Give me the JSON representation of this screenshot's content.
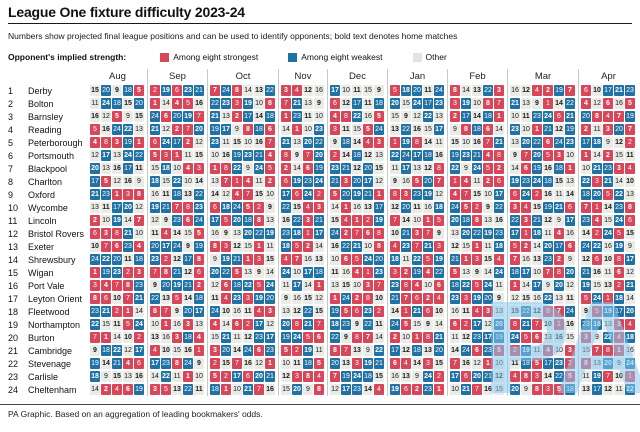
{
  "title": "League One fixture difficulty 2023-24",
  "subtitle": "Numbers show projected final league positions and can be used to identify opponents; bold text denotes home matches",
  "legend": {
    "title": "Opponent's implied strength:",
    "items": [
      {
        "label": "Among eight strongest",
        "color": "#d8465a"
      },
      {
        "label": "Among eight weakest",
        "color": "#2172a4"
      },
      {
        "label": "Other",
        "color": "#e3e3e0"
      }
    ]
  },
  "colors": {
    "strong": "#d8465a",
    "weak": "#2172a4",
    "other": "#eaeae7",
    "other_text": "#1a1a1a"
  },
  "footer": "PA Graphic. Based on an aggregation of leading bookmakers' odds.",
  "watermark": "PA",
  "chart_data": {
    "type": "heatmap",
    "title": "League One fixture difficulty 2023-24",
    "value_semantics": "Each cell is the projected final league position of that matchday's opponent. Red = opponent among eight strongest (1-8), blue = among eight weakest (17-24), grey = other (9-16). Bold text denotes home matches.",
    "months": [
      {
        "label": "Aug",
        "matches": 5
      },
      {
        "label": "Sep",
        "matches": 5
      },
      {
        "label": "Oct",
        "matches": 6
      },
      {
        "label": "Nov",
        "matches": 4
      },
      {
        "label": "Dec",
        "matches": 5
      },
      {
        "label": "Jan",
        "matches": 5
      },
      {
        "label": "Feb",
        "matches": 5
      },
      {
        "label": "Mar",
        "matches": 6
      },
      {
        "label": "Apr",
        "matches": 5
      }
    ],
    "teams": [
      {
        "rank": 1,
        "name": "Derby",
        "home_first": true,
        "fixtures": [
          15,
          20,
          9,
          18,
          5,
          2,
          19,
          6,
          23,
          21,
          7,
          24,
          8,
          14,
          13,
          22,
          3,
          4,
          12,
          16,
          17,
          10,
          11,
          15,
          9,
          5,
          18,
          20,
          11,
          24,
          8,
          14,
          13,
          22,
          3,
          16,
          12,
          4,
          2,
          19,
          7,
          6,
          10,
          17,
          21,
          23
        ]
      },
      {
        "rank": 2,
        "name": "Bolton",
        "home_first": false,
        "fixtures": [
          11,
          24,
          18,
          15,
          20,
          1,
          14,
          4,
          5,
          16,
          22,
          23,
          3,
          19,
          10,
          8,
          7,
          21,
          13,
          9,
          6,
          12,
          17,
          11,
          18,
          20,
          15,
          24,
          17,
          23,
          3,
          19,
          10,
          8,
          7,
          21,
          13,
          9,
          1,
          14,
          22,
          4,
          12,
          6,
          16,
          5
        ]
      },
      {
        "rank": 3,
        "name": "Barnsley",
        "home_first": true,
        "fixtures": [
          16,
          12,
          5,
          9,
          15,
          24,
          6,
          20,
          19,
          7,
          21,
          13,
          2,
          17,
          14,
          18,
          1,
          23,
          11,
          10,
          4,
          8,
          22,
          16,
          5,
          15,
          9,
          12,
          22,
          13,
          2,
          17,
          14,
          18,
          1,
          10,
          11,
          23,
          24,
          6,
          21,
          20,
          8,
          4,
          7,
          19
        ]
      },
      {
        "rank": 4,
        "name": "Reading",
        "home_first": false,
        "fixtures": [
          5,
          16,
          24,
          22,
          13,
          21,
          12,
          2,
          7,
          20,
          19,
          17,
          9,
          8,
          18,
          6,
          14,
          1,
          10,
          23,
          3,
          11,
          15,
          5,
          24,
          13,
          22,
          16,
          15,
          17,
          9,
          8,
          18,
          6,
          14,
          23,
          10,
          1,
          21,
          12,
          19,
          2,
          11,
          3,
          20,
          7
        ]
      },
      {
        "rank": 5,
        "name": "Peterborough",
        "home_first": true,
        "fixtures": [
          4,
          8,
          3,
          19,
          1,
          6,
          24,
          17,
          2,
          12,
          23,
          11,
          15,
          10,
          16,
          7,
          21,
          13,
          20,
          22,
          9,
          18,
          14,
          4,
          3,
          1,
          19,
          8,
          14,
          11,
          15,
          10,
          16,
          7,
          21,
          13,
          20,
          22,
          6,
          24,
          23,
          17,
          18,
          9,
          12,
          2
        ]
      },
      {
        "rank": 6,
        "name": "Portsmouth",
        "home_first": false,
        "fixtures": [
          12,
          17,
          13,
          24,
          22,
          5,
          3,
          1,
          11,
          15,
          10,
          16,
          19,
          23,
          21,
          4,
          8,
          9,
          7,
          20,
          2,
          14,
          18,
          12,
          13,
          22,
          24,
          17,
          18,
          16,
          19,
          23,
          21,
          4,
          8,
          9,
          7,
          20,
          5,
          3,
          10,
          1,
          14,
          2,
          15,
          11
        ]
      },
      {
        "rank": 7,
        "name": "Blackpool",
        "home_first": true,
        "fixtures": [
          20,
          13,
          16,
          17,
          11,
          15,
          18,
          10,
          4,
          3,
          1,
          8,
          22,
          9,
          24,
          5,
          2,
          14,
          6,
          19,
          23,
          21,
          12,
          20,
          15,
          11,
          17,
          13,
          12,
          8,
          22,
          9,
          24,
          5,
          2,
          14,
          6,
          19,
          16,
          18,
          1,
          10,
          21,
          23,
          3,
          4
        ]
      },
      {
        "rank": 8,
        "name": "Charlton",
        "home_first": false,
        "fixtures": [
          17,
          5,
          12,
          16,
          9,
          18,
          15,
          22,
          10,
          14,
          13,
          7,
          1,
          4,
          11,
          2,
          6,
          19,
          23,
          24,
          21,
          3,
          20,
          17,
          12,
          9,
          16,
          5,
          20,
          7,
          1,
          4,
          11,
          2,
          6,
          19,
          23,
          24,
          18,
          15,
          13,
          22,
          3,
          21,
          14,
          10
        ]
      },
      {
        "rank": 9,
        "name": "Oxford",
        "home_first": true,
        "fixtures": [
          21,
          23,
          1,
          3,
          8,
          16,
          11,
          18,
          13,
          22,
          14,
          12,
          4,
          7,
          15,
          10,
          17,
          6,
          24,
          2,
          5,
          20,
          19,
          21,
          1,
          8,
          3,
          23,
          19,
          12,
          4,
          7,
          15,
          10,
          17,
          6,
          24,
          2,
          16,
          11,
          14,
          18,
          20,
          5,
          22,
          13
        ]
      },
      {
        "rank": 10,
        "name": "Wycombe",
        "home_first": false,
        "fixtures": [
          13,
          11,
          17,
          20,
          12,
          19,
          21,
          7,
          8,
          23,
          6,
          18,
          24,
          5,
          2,
          9,
          22,
          15,
          4,
          3,
          14,
          1,
          16,
          13,
          17,
          12,
          20,
          11,
          16,
          18,
          24,
          5,
          2,
          9,
          22,
          3,
          4,
          15,
          19,
          21,
          6,
          7,
          1,
          14,
          23,
          8
        ]
      },
      {
        "rank": 11,
        "name": "Lincoln",
        "home_first": true,
        "fixtures": [
          2,
          10,
          19,
          14,
          7,
          12,
          9,
          23,
          6,
          24,
          17,
          5,
          20,
          18,
          8,
          13,
          16,
          22,
          3,
          21,
          15,
          4,
          1,
          2,
          19,
          7,
          14,
          10,
          1,
          5,
          20,
          18,
          8,
          13,
          16,
          22,
          3,
          21,
          12,
          9,
          17,
          23,
          4,
          15,
          24,
          6
        ]
      },
      {
        "rank": 12,
        "name": "Bristol Rovers",
        "home_first": false,
        "fixtures": [
          6,
          3,
          8,
          21,
          10,
          11,
          4,
          14,
          15,
          5,
          16,
          9,
          13,
          20,
          22,
          19,
          23,
          18,
          1,
          17,
          24,
          2,
          7,
          6,
          8,
          10,
          21,
          3,
          7,
          9,
          13,
          20,
          22,
          19,
          23,
          17,
          1,
          18,
          11,
          4,
          16,
          14,
          2,
          24,
          5,
          15
        ]
      },
      {
        "rank": 13,
        "name": "Exeter",
        "home_first": true,
        "fixtures": [
          10,
          7,
          6,
          23,
          4,
          20,
          17,
          24,
          9,
          19,
          8,
          3,
          12,
          15,
          1,
          11,
          18,
          5,
          2,
          14,
          16,
          22,
          21,
          10,
          8,
          4,
          23,
          7,
          21,
          3,
          12,
          15,
          1,
          11,
          18,
          5,
          2,
          14,
          20,
          17,
          6,
          24,
          22,
          16,
          19,
          9
        ]
      },
      {
        "rank": 14,
        "name": "Shrewsbury",
        "home_first": false,
        "fixtures": [
          24,
          22,
          20,
          11,
          18,
          23,
          2,
          12,
          17,
          8,
          9,
          19,
          21,
          1,
          3,
          15,
          4,
          7,
          16,
          13,
          10,
          6,
          5,
          24,
          20,
          18,
          11,
          22,
          5,
          19,
          21,
          1,
          3,
          15,
          4,
          7,
          16,
          13,
          23,
          2,
          9,
          12,
          6,
          10,
          8,
          17
        ]
      },
      {
        "rank": 15,
        "name": "Wigan",
        "home_first": true,
        "fixtures": [
          1,
          19,
          23,
          2,
          3,
          7,
          8,
          21,
          12,
          6,
          20,
          22,
          5,
          13,
          9,
          14,
          24,
          10,
          17,
          18,
          11,
          16,
          4,
          1,
          23,
          3,
          2,
          19,
          4,
          22,
          5,
          13,
          9,
          14,
          24,
          18,
          17,
          10,
          7,
          8,
          20,
          21,
          16,
          11,
          6,
          12
        ]
      },
      {
        "rank": 16,
        "name": "Port Vale",
        "home_first": false,
        "fixtures": [
          3,
          4,
          7,
          8,
          23,
          9,
          20,
          19,
          21,
          2,
          12,
          6,
          18,
          22,
          5,
          24,
          11,
          17,
          14,
          1,
          13,
          15,
          10,
          3,
          7,
          23,
          8,
          4,
          10,
          6,
          18,
          22,
          5,
          24,
          11,
          1,
          14,
          17,
          9,
          20,
          12,
          19,
          15,
          13,
          2,
          21
        ]
      },
      {
        "rank": 17,
        "name": "Leyton Orient",
        "home_first": true,
        "fixtures": [
          8,
          6,
          10,
          7,
          21,
          22,
          13,
          5,
          14,
          18,
          11,
          4,
          23,
          3,
          19,
          20,
          9,
          16,
          15,
          12,
          1,
          24,
          2,
          8,
          10,
          21,
          7,
          6,
          2,
          4,
          23,
          3,
          19,
          20,
          9,
          12,
          15,
          16,
          22,
          13,
          11,
          5,
          24,
          1,
          18,
          14
        ]
      },
      {
        "rank": 18,
        "name": "Fleetwood",
        "home_first": false,
        "fixtures": [
          23,
          21,
          2,
          1,
          14,
          8,
          7,
          9,
          20,
          17,
          24,
          10,
          16,
          11,
          4,
          3,
          13,
          12,
          22,
          15,
          19,
          5,
          6,
          23,
          2,
          14,
          1,
          21,
          6,
          10,
          16,
          11,
          4,
          3,
          13,
          15,
          22,
          12,
          8,
          7,
          24,
          9,
          5,
          19,
          17,
          20
        ]
      },
      {
        "rank": 19,
        "name": "Northampton",
        "home_first": true,
        "fixtures": [
          22,
          15,
          11,
          5,
          24,
          10,
          1,
          16,
          3,
          13,
          4,
          14,
          6,
          2,
          17,
          12,
          20,
          8,
          21,
          7,
          18,
          23,
          9,
          22,
          11,
          24,
          5,
          15,
          9,
          14,
          6,
          2,
          17,
          12,
          20,
          8,
          21,
          7,
          10,
          1,
          16,
          23,
          18,
          13,
          3,
          4
        ]
      },
      {
        "rank": 20,
        "name": "Burton",
        "home_first": false,
        "fixtures": [
          7,
          1,
          14,
          10,
          2,
          13,
          16,
          3,
          18,
          4,
          15,
          21,
          11,
          12,
          23,
          17,
          19,
          24,
          5,
          6,
          22,
          9,
          8,
          7,
          14,
          2,
          10,
          1,
          8,
          21,
          11,
          12,
          23,
          17,
          19,
          24,
          5,
          6,
          13,
          16,
          15,
          3,
          9,
          22,
          4,
          18
        ]
      },
      {
        "rank": 21,
        "name": "Cambridge",
        "home_first": true,
        "fixtures": [
          9,
          18,
          22,
          12,
          17,
          4,
          10,
          15,
          16,
          1,
          3,
          20,
          14,
          24,
          6,
          23,
          5,
          2,
          19,
          11,
          8,
          7,
          13,
          9,
          22,
          17,
          12,
          18,
          13,
          20,
          14,
          24,
          6,
          23,
          5,
          2,
          19,
          11,
          4,
          10,
          3,
          15,
          7,
          8,
          1,
          16
        ]
      },
      {
        "rank": 22,
        "name": "Stevenage",
        "home_first": false,
        "fixtures": [
          19,
          14,
          21,
          4,
          6,
          17,
          23,
          8,
          24,
          9,
          2,
          15,
          7,
          16,
          12,
          1,
          10,
          11,
          18,
          5,
          20,
          13,
          3,
          19,
          21,
          6,
          4,
          14,
          3,
          15,
          7,
          16,
          12,
          1,
          10,
          11,
          18,
          5,
          17,
          23,
          2,
          8,
          13,
          20,
          9,
          24
        ]
      },
      {
        "rank": 23,
        "name": "Carlisle",
        "home_first": true,
        "fixtures": [
          18,
          9,
          15,
          13,
          16,
          14,
          22,
          11,
          1,
          10,
          5,
          2,
          17,
          6,
          20,
          21,
          12,
          3,
          8,
          4,
          7,
          19,
          24,
          18,
          15,
          16,
          13,
          9,
          24,
          2,
          17,
          6,
          20,
          21,
          12,
          4,
          8,
          3,
          14,
          22,
          5,
          11,
          19,
          7,
          10,
          1
        ]
      },
      {
        "rank": 24,
        "name": "Cheltenham",
        "home_first": false,
        "fixtures": [
          14,
          2,
          4,
          6,
          19,
          3,
          5,
          13,
          22,
          11,
          18,
          1,
          10,
          21,
          7,
          16,
          15,
          20,
          9,
          8,
          12,
          17,
          23,
          14,
          4,
          19,
          6,
          2,
          23,
          1,
          10,
          21,
          7,
          16,
          15,
          20,
          9,
          8,
          3,
          5,
          18,
          13,
          17,
          12,
          11,
          22
        ]
      }
    ]
  }
}
